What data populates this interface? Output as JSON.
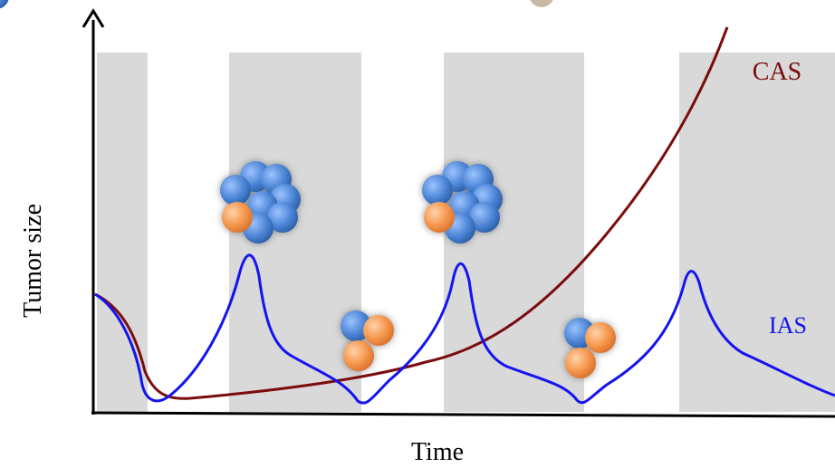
{
  "axes": {
    "y_label": "Tumor size",
    "x_label": "Time"
  },
  "curves": [
    {
      "label": "CAS"
    },
    {
      "label": "IAS"
    }
  ]
}
